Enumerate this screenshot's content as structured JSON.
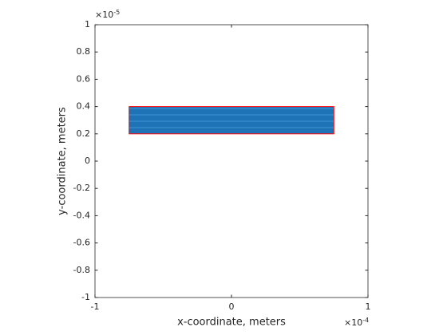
{
  "chart_data": {
    "type": "mesh",
    "xlabel": "x-coordinate, meters",
    "ylabel": "y-coordinate, meters",
    "x_exponent": {
      "base": "×10",
      "power": "-4"
    },
    "y_exponent": {
      "base": "×10",
      "power": "-5"
    },
    "xlim": [
      -1,
      1
    ],
    "xticks": [
      -1,
      0,
      1
    ],
    "ylim": [
      -1,
      1
    ],
    "yticks": [
      -1,
      -0.8,
      -0.6,
      -0.4,
      -0.2,
      0,
      0.2,
      0.4,
      0.6,
      0.8,
      1
    ],
    "shape": {
      "x": [
        -0.75,
        0.75
      ],
      "y": [
        0.2,
        0.4
      ],
      "edge_color": "#ff0000",
      "mesh_color": "#0072bd"
    }
  }
}
